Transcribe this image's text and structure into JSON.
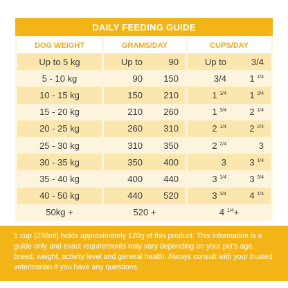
{
  "title": "DAILY FEEDING GUIDE",
  "headers": {
    "weight": "DOG WEIGHT",
    "grams": "GRAMS/DAY",
    "cups": "CUPS/DAY"
  },
  "rows": [
    {
      "weight": "Up to 5 kg",
      "g_min": "Up to",
      "g_max": "90",
      "c_min": "Up to",
      "c_min_sup": "",
      "c_max": "3/4",
      "c_max_sup": ""
    },
    {
      "weight": "5 - 10 kg",
      "g_min": "90",
      "g_max": "150",
      "c_min": "3/4",
      "c_min_sup": "",
      "c_max": "1",
      "c_max_sup": "1/4"
    },
    {
      "weight": "10 - 15 kg",
      "g_min": "150",
      "g_max": "210",
      "c_min": "1",
      "c_min_sup": "1/4",
      "c_max": "1",
      "c_max_sup": "3/4"
    },
    {
      "weight": "15 - 20 kg",
      "g_min": "210",
      "g_max": "260",
      "c_min": "1",
      "c_min_sup": "3/4",
      "c_max": "2",
      "c_max_sup": "1/4"
    },
    {
      "weight": "20 - 25 kg",
      "g_min": "260",
      "g_max": "310",
      "c_min": "2",
      "c_min_sup": "1/4",
      "c_max": "2",
      "c_max_sup": "2/4"
    },
    {
      "weight": "25 - 30 kg",
      "g_min": "310",
      "g_max": "350",
      "c_min": "2",
      "c_min_sup": "2/4",
      "c_max": "3",
      "c_max_sup": ""
    },
    {
      "weight": "30 - 35 kg",
      "g_min": "350",
      "g_max": "400",
      "c_min": "3",
      "c_min_sup": "",
      "c_max": "3",
      "c_max_sup": "1/4"
    },
    {
      "weight": "35 - 40 kg",
      "g_min": "400",
      "g_max": "440",
      "c_min": "3",
      "c_min_sup": "1/4",
      "c_max": "3",
      "c_max_sup": "3/4"
    },
    {
      "weight": "40 - 50 kg",
      "g_min": "440",
      "g_max": "520",
      "c_min": "3",
      "c_min_sup": "3/4",
      "c_max": "4",
      "c_max_sup": "1/4"
    }
  ],
  "last_row": {
    "weight": "50kg +",
    "grams": "520 +",
    "cups": "4",
    "cups_sup": "1/4",
    "cups_suffix": "+"
  },
  "note": "1 cup (250ml) holds approximately 120g of this product. This information is a guide only and exact requirements may vary depending on your pet's age, breed, weight, activity level and general health. Always consult with your trusted veterinarian if you have any questions."
}
